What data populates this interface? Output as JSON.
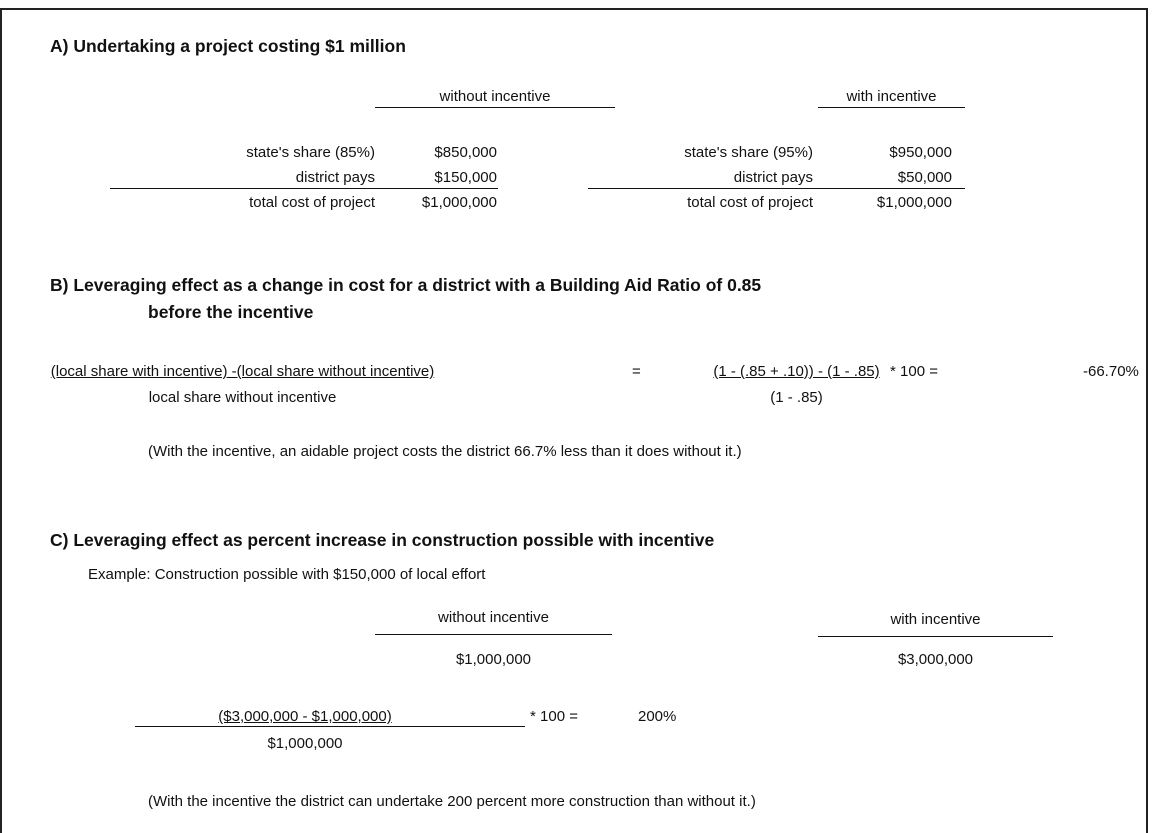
{
  "section_a": {
    "title": "A) Undertaking a project costing $1 million",
    "without": {
      "header": "without incentive",
      "rows": [
        [
          "state's share (85%)",
          "$850,000"
        ],
        [
          "district pays",
          "$150,000"
        ],
        [
          "total cost of project",
          "$1,000,000"
        ]
      ]
    },
    "with": {
      "header": "with incentive",
      "rows": [
        [
          "state's share (95%)",
          "$950,000"
        ],
        [
          "district pays",
          "$50,000"
        ],
        [
          "total cost of project",
          "$1,000,000"
        ]
      ]
    }
  },
  "section_b": {
    "title": "B) Leveraging effect as a change in cost for a district with a Building Aid Ratio of 0.85",
    "title_line2": "before the incentive",
    "formula": {
      "numerator": "(local share with incentive) -(local share without incentive)",
      "denominator": "local share without incentive",
      "equals": "=",
      "expression_numerator": "(1 - (.85 + .10)) - (1 - .85)",
      "expression_denominator": "(1 - .85)",
      "multiplier": "* 100 =",
      "result": "-66.70%"
    },
    "note": "(With the incentive, an aidable project costs the district 66.7% less than it does without it.)"
  },
  "section_c": {
    "title": "C) Leveraging effect as percent increase in construction possible with incentive",
    "example": "Example:  Construction possible with $150,000 of local effort",
    "without": {
      "header": "without incentive",
      "value": "$1,000,000"
    },
    "with": {
      "header": "with incentive",
      "value": "$3,000,000"
    },
    "formula": {
      "numerator": "($3,000,000 - $1,000,000)",
      "denominator": "$1,000,000",
      "multiplier": "* 100 =",
      "result": "200%"
    },
    "note": "(With the incentive the district can undertake 200 percent more construction than without it.)"
  }
}
